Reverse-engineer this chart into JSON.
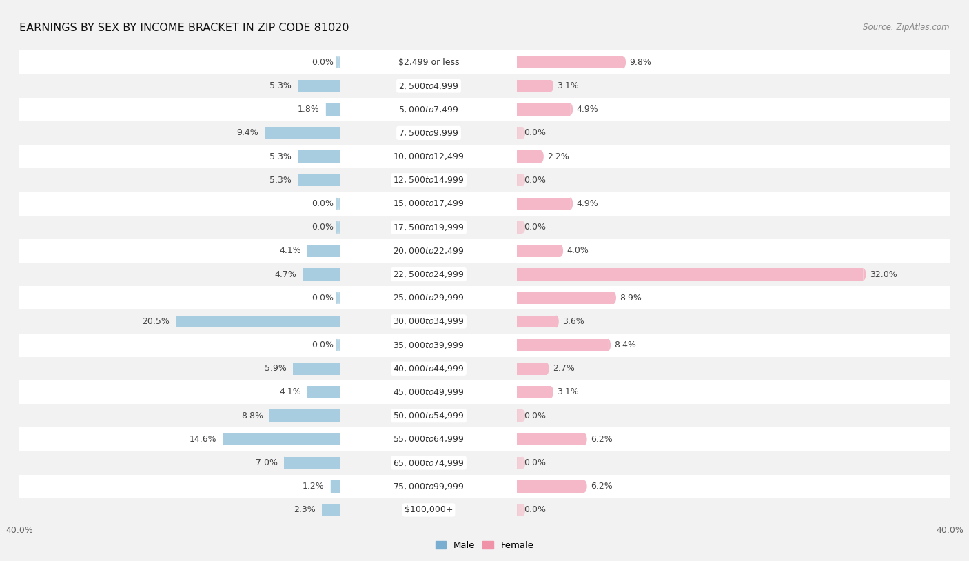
{
  "title": "EARNINGS BY SEX BY INCOME BRACKET IN ZIP CODE 81020",
  "source": "Source: ZipAtlas.com",
  "categories": [
    "$2,499 or less",
    "$2,500 to $4,999",
    "$5,000 to $7,499",
    "$7,500 to $9,999",
    "$10,000 to $12,499",
    "$12,500 to $14,999",
    "$15,000 to $17,499",
    "$17,500 to $19,999",
    "$20,000 to $22,499",
    "$22,500 to $24,999",
    "$25,000 to $29,999",
    "$30,000 to $34,999",
    "$35,000 to $39,999",
    "$40,000 to $44,999",
    "$45,000 to $49,999",
    "$50,000 to $54,999",
    "$55,000 to $64,999",
    "$65,000 to $74,999",
    "$75,000 to $99,999",
    "$100,000+"
  ],
  "male_values": [
    0.0,
    5.3,
    1.8,
    9.4,
    5.3,
    5.3,
    0.0,
    0.0,
    4.1,
    4.7,
    0.0,
    20.5,
    0.0,
    5.9,
    4.1,
    8.8,
    14.6,
    7.0,
    1.2,
    2.3
  ],
  "female_values": [
    9.8,
    3.1,
    4.9,
    0.0,
    2.2,
    0.0,
    4.9,
    0.0,
    4.0,
    32.0,
    8.9,
    3.6,
    8.4,
    2.7,
    3.1,
    0.0,
    6.2,
    0.0,
    6.2,
    0.0
  ],
  "male_color": "#7aaed0",
  "female_color": "#f093a8",
  "male_bar_color": "#a8cce0",
  "female_bar_color": "#f4b8c8",
  "row_bg_odd": "#f2f2f2",
  "row_bg_even": "#ffffff",
  "xlim": 40.0,
  "bar_height": 0.52,
  "label_fontsize": 9.0,
  "title_fontsize": 11.5,
  "source_fontsize": 8.5,
  "legend_fontsize": 9.5,
  "category_fontsize": 9.0,
  "value_fontsize": 9.0
}
